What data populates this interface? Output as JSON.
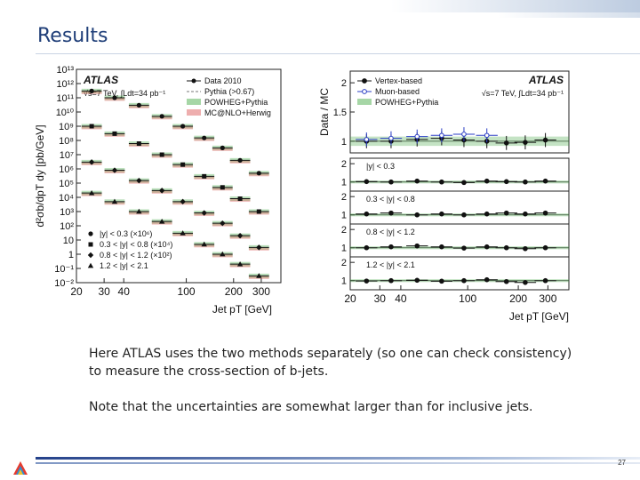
{
  "slide": {
    "title": "Results",
    "paragraphs": [
      "Here ATLAS uses the two methods separately (so one can check consistency) to measure the cross-section of b-jets.",
      "Note that the uncertainties are somewhat larger than for inclusive jets."
    ],
    "page_number": "27"
  },
  "colors": {
    "title": "#1f3e78",
    "powheg_band": "#3aa33a",
    "mcnlo_band": "#d94b4b",
    "muon_based": "#2a3dc4"
  },
  "chart_data": [
    {
      "type": "scatter",
      "atlas_label": "ATLAS",
      "energy_label": "√s=7 TeV, ∫Ldt=34 pb⁻¹",
      "ylabel": "d²σb/dpT dy [pb/GeV]",
      "xlabel": "Jet pT [GeV]",
      "log_x": true,
      "log_y": true,
      "xlim": [
        20,
        400
      ],
      "ylim": [
        0.01,
        10000000000000
      ],
      "x_ticks": [
        "20",
        "30",
        "40",
        "100",
        "200",
        "300"
      ],
      "y_ticks": [
        "10⁻²",
        "10⁻¹",
        "1",
        "10",
        "10²",
        "10³",
        "10⁴",
        "10⁵",
        "10⁶",
        "10⁷",
        "10⁸",
        "10⁹",
        "10¹⁰",
        "10¹¹",
        "10¹²",
        "10¹³"
      ],
      "legend_placement": "top-right",
      "legend": [
        "Data 2010",
        "Pythia (>0.67)",
        "POWHEG+Pythia",
        "MC@NLO+Herwig"
      ],
      "series": [
        {
          "name": "|y| < 0.3 (×10⁶)",
          "x": [
            25,
            35,
            50,
            70,
            95,
            130,
            170,
            220,
            290
          ],
          "y": [
            300000000000,
            100000000000,
            30000000000,
            5000000000,
            1000000000,
            150000000,
            30000000,
            4000000,
            500000
          ]
        },
        {
          "name": "0.3 < |y| < 0.8 (×10⁴)",
          "x": [
            25,
            35,
            50,
            70,
            95,
            130,
            170,
            220,
            290
          ],
          "y": [
            1000000000,
            300000000,
            60000000,
            10000000,
            2000000,
            300000,
            50000,
            8000,
            1000
          ]
        },
        {
          "name": "0.8 < |y| < 1.2 (×10²)",
          "x": [
            25,
            35,
            50,
            70,
            95,
            130,
            170,
            220,
            290
          ],
          "y": [
            3000000,
            800000,
            150000,
            30000,
            5000,
            800,
            150,
            20,
            3
          ]
        },
        {
          "name": "1.2 < |y| < 2.1",
          "x": [
            25,
            35,
            50,
            70,
            95,
            130,
            170,
            220,
            290
          ],
          "y": [
            20000,
            5000,
            1000,
            200,
            30,
            5,
            1,
            0.2,
            0.03
          ]
        }
      ]
    },
    {
      "type": "scatter",
      "atlas_label": "ATLAS",
      "energy_label": "√s=7 TeV, ∫Ldt=34 pb⁻¹",
      "ylabel": "Data / MC",
      "xlabel": "Jet pT [GeV]",
      "log_x": true,
      "xlim": [
        20,
        400
      ],
      "x_ticks": [
        "20",
        "30",
        "40",
        "100",
        "200",
        "300"
      ],
      "legend_placement": "top",
      "legend": [
        "Vertex-based",
        "Muon-based",
        "POWHEG+Pythia"
      ],
      "top_panel": {
        "ylim": [
          0.8,
          2.2
        ],
        "y_ticks": [
          "1",
          "1.5",
          "2"
        ],
        "series": [
          {
            "name": "Vertex-based",
            "x": [
              25,
              35,
              50,
              70,
              95,
              130,
              170,
              220,
              290
            ],
            "y": [
              1.0,
              1.0,
              1.03,
              1.05,
              1.02,
              1.0,
              0.97,
              0.98,
              1.02
            ]
          },
          {
            "name": "Muon-based",
            "x": [
              25,
              35,
              50,
              70,
              95,
              130
            ],
            "y": [
              1.03,
              1.05,
              1.08,
              1.1,
              1.12,
              1.1
            ]
          }
        ]
      },
      "panels": [
        {
          "label": "|y| < 0.3",
          "ylim": [
            0.5,
            2.3
          ],
          "y_ticks": [
            "1",
            "2"
          ],
          "x": [
            25,
            35,
            50,
            70,
            95,
            130,
            170,
            220,
            290
          ],
          "y": [
            1.02,
            1.0,
            1.05,
            1.0,
            0.97,
            1.05,
            1.02,
            1.0,
            1.05
          ]
        },
        {
          "label": "0.3 < |y| < 0.8",
          "ylim": [
            0.5,
            2.3
          ],
          "y_ticks": [
            "1",
            "2"
          ],
          "x": [
            25,
            35,
            50,
            70,
            95,
            130,
            170,
            220,
            290
          ],
          "y": [
            1.05,
            1.1,
            1.0,
            1.05,
            1.0,
            1.05,
            1.1,
            1.05,
            1.1
          ]
        },
        {
          "label": "0.8 < |y| < 1.2",
          "ylim": [
            0.5,
            2.3
          ],
          "y_ticks": [
            "1",
            "2"
          ],
          "x": [
            25,
            35,
            50,
            70,
            95,
            130,
            170,
            220,
            290
          ],
          "y": [
            1.0,
            1.05,
            1.1,
            1.05,
            0.98,
            1.05,
            1.0,
            0.95,
            1.0
          ]
        },
        {
          "label": "1.2 < |y| < 2.1",
          "ylim": [
            0.5,
            2.3
          ],
          "y_ticks": [
            "1",
            "2"
          ],
          "x": [
            25,
            35,
            50,
            70,
            95,
            130,
            170,
            220,
            290
          ],
          "y": [
            0.98,
            1.0,
            1.02,
            0.97,
            1.0,
            1.05,
            0.95,
            0.9,
            1.0
          ]
        }
      ]
    }
  ]
}
